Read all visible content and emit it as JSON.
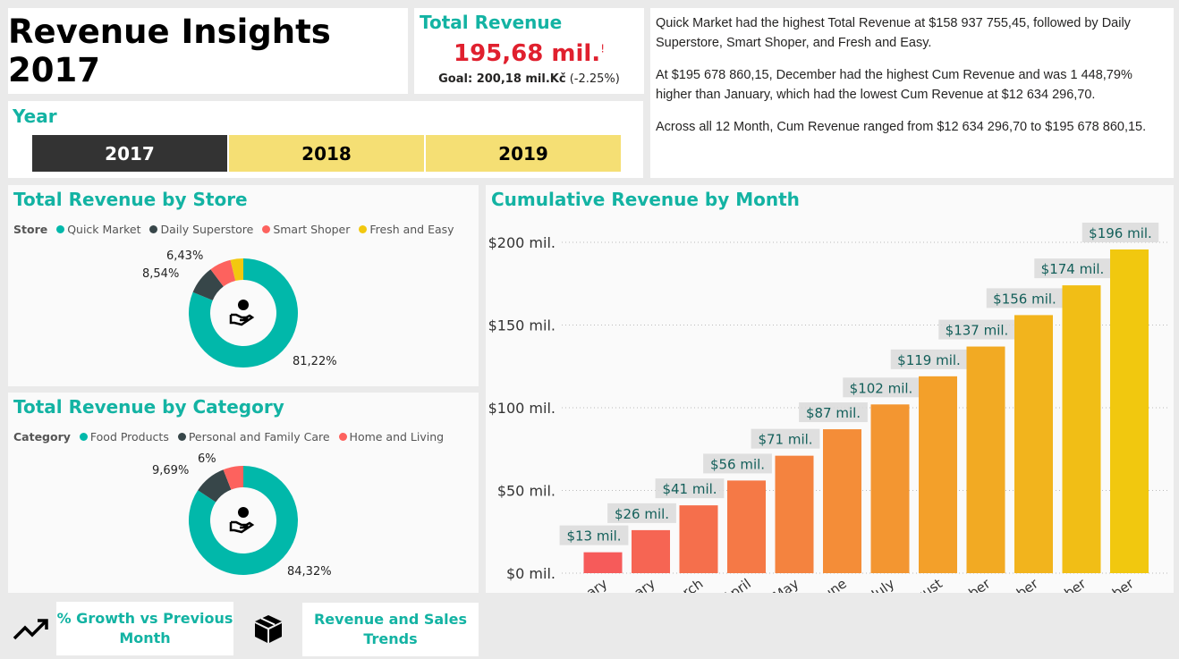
{
  "title": "Revenue Insights 2017",
  "kpi": {
    "label": "Total Revenue",
    "value": "195,68 mil.",
    "alert": "!",
    "goal": "Goal: 200,18 mil.Kč",
    "delta": "(-2.25%)"
  },
  "narrative": [
    "Quick Market had the highest Total Revenue at $158 937 755,45, followed by Daily Superstore, Smart Shoper, and Fresh and Easy.",
    "At $195 678 860,15, December had the highest Cum Revenue and was 1 448,79% higher than January, which had the lowest Cum Revenue at $12 634 296,70.",
    "Across all 12 Month, Cum Revenue ranged from $12 634 296,70 to $195 678 860,15."
  ],
  "year": {
    "label": "Year",
    "options": [
      "2017",
      "2018",
      "2019"
    ],
    "selected": "2017"
  },
  "store": {
    "title": "Total Revenue by Store",
    "legend_title": "Store",
    "items": [
      {
        "name": "Quick Market",
        "pct": 81.22,
        "label": "81,22%",
        "color": "#01b8aa"
      },
      {
        "name": "Daily Superstore",
        "pct": 8.54,
        "label": "8,54%",
        "color": "#374649"
      },
      {
        "name": "Smart Shoper",
        "pct": 6.43,
        "label": "6,43%",
        "color": "#fd625e"
      },
      {
        "name": "Fresh and Easy",
        "pct": 3.81,
        "label": "",
        "color": "#f2c80f"
      }
    ]
  },
  "category": {
    "title": "Total Revenue by Category",
    "legend_title": "Category",
    "items": [
      {
        "name": "Food Products",
        "pct": 84.32,
        "label": "84,32%",
        "color": "#01b8aa"
      },
      {
        "name": "Personal and Family Care",
        "pct": 9.69,
        "label": "9,69%",
        "color": "#374649"
      },
      {
        "name": "Home and Living",
        "pct": 6,
        "label": "6%",
        "color": "#fd625e"
      }
    ]
  },
  "buttons": {
    "growth": "% Growth vs Previous Month",
    "trends": "Revenue and Sales Trends"
  },
  "chart_data": {
    "type": "bar",
    "title": "Cumulative Revenue by Month",
    "categories": [
      "January",
      "February",
      "March",
      "April",
      "May",
      "June",
      "July",
      "August",
      "September",
      "October",
      "November",
      "December"
    ],
    "values": [
      12.63,
      26,
      41,
      56,
      71,
      87,
      102,
      119,
      137,
      156,
      174,
      195.68
    ],
    "data_labels": [
      "$13 mil.",
      "$26 mil.",
      "$41 mil.",
      "$56 mil.",
      "$71 mil.",
      "$87 mil.",
      "$102 mil.",
      "$119 mil.",
      "$137 mil.",
      "$156 mil.",
      "$174 mil.",
      "$196 mil."
    ],
    "yticks": [
      "$0 mil.",
      "$50 mil.",
      "$100 mil.",
      "$150 mil.",
      "$200 mil."
    ],
    "ylim": [
      0,
      200
    ],
    "grid": true,
    "color_start": "#f65b5a",
    "color_end": "#f1c80f"
  }
}
